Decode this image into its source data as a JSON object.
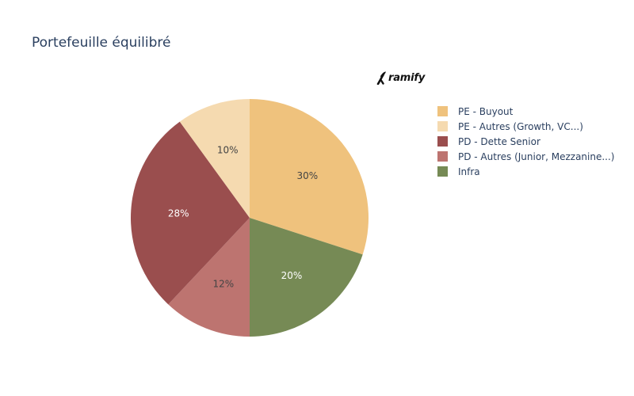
{
  "chart_data": {
    "type": "pie",
    "title": "Portefeuille équilibré",
    "categories": [
      "PE - Buyout",
      "PE - Autres (Growth, VC...)",
      "PD - Dette Senior",
      "PD - Autres (Junior, Mezzanine...)",
      "Infra"
    ],
    "values": [
      30,
      10,
      28,
      12,
      20
    ],
    "value_suffix": "%",
    "colors": [
      "#efc27d",
      "#f5dab0",
      "#9a4e4e",
      "#bd7470",
      "#768a55"
    ],
    "label_colors": [
      "#444444",
      "#444444",
      "#ffffff",
      "#444444",
      "#ffffff"
    ],
    "legend_position": "right",
    "show_percent_labels": true,
    "start": "top",
    "direction": "clockwise",
    "slice_order": [
      0,
      4,
      3,
      2,
      1
    ]
  },
  "brand": {
    "text": "ramify",
    "icon": "ramify-logo-icon"
  }
}
